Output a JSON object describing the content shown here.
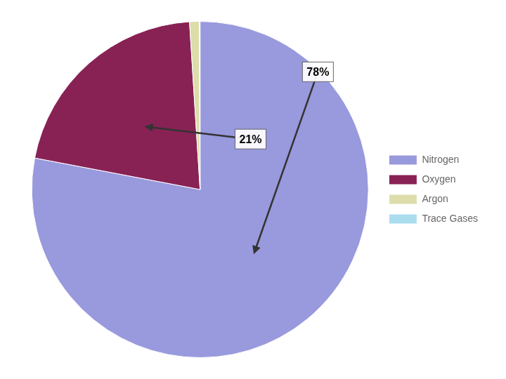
{
  "chart_data": {
    "type": "pie",
    "categories": [
      "Nitrogen",
      "Oxygen",
      "Argon",
      "Trace Gases"
    ],
    "values": [
      78,
      21,
      0.93,
      0.07
    ],
    "colors": [
      "#9999dd",
      "#882255",
      "#ddddaa",
      "#aaddee"
    ],
    "legend": "right",
    "annotations": [
      {
        "text": "78%",
        "category": "Nitrogen"
      },
      {
        "text": "21%",
        "category": "Oxygen"
      }
    ]
  }
}
